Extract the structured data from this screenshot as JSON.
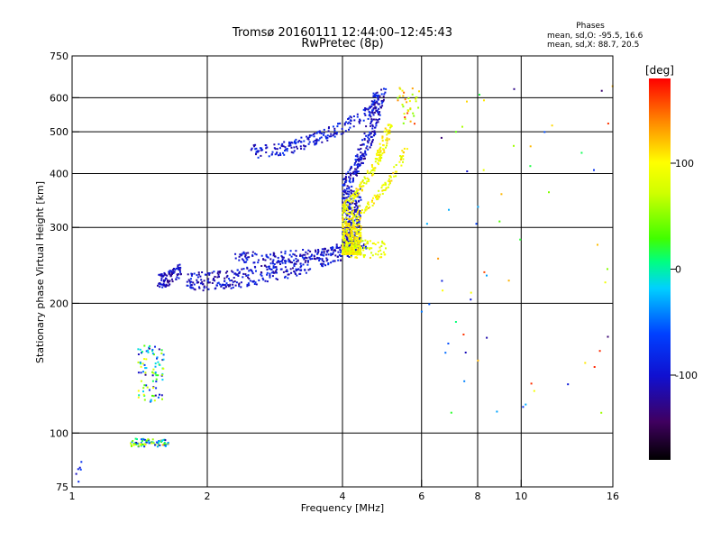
{
  "chart_data": {
    "type": "scatter",
    "title": "Tromsø 20160111 12:44:00–12:45:43",
    "subtitle": "RwPretec (8p)",
    "xlabel": "Frequency [MHz]",
    "ylabel": "Stationary phase Virtual Height [km]",
    "x_scale": "log",
    "y_scale": "log",
    "xlim": [
      1,
      16
    ],
    "ylim": [
      75,
      750
    ],
    "x_ticks": [
      1,
      2,
      4,
      6,
      8,
      10,
      16
    ],
    "x_tick_labels": [
      "1",
      "2",
      "4",
      "6",
      "8",
      "10",
      "16"
    ],
    "y_ticks": [
      75,
      100,
      200,
      300,
      400,
      500,
      600,
      750
    ],
    "y_tick_labels": [
      "75",
      "100",
      "200",
      "300",
      "400",
      "500",
      "600",
      "750"
    ],
    "grid": true,
    "stats": {
      "heading": "Phases",
      "line_o": "mean, sd,O: -95.5, 16.6",
      "line_x": "mean, sd,X:  88.7, 20.5"
    },
    "colorbar": {
      "label": "[deg]",
      "range": [
        -180,
        180
      ],
      "ticks": [
        100,
        0,
        -100
      ],
      "tick_labels": [
        "100",
        "0",
        "-100"
      ]
    },
    "series": [
      {
        "segments": [
          {
            "kind": "cluster",
            "x": [
              1.0,
              1.05
            ],
            "y": [
              77,
              88
            ],
            "phase": [
              -110,
              -60
            ],
            "n": 6
          },
          {
            "kind": "cluster",
            "x": [
              1.35,
              1.65
            ],
            "y": [
              93,
              97
            ],
            "phase": [
              -115,
              140
            ],
            "n": 80
          },
          {
            "kind": "cluster",
            "x": [
              1.4,
              1.6
            ],
            "y": [
              118,
              160
            ],
            "phase": [
              -130,
              110
            ],
            "n": 90
          },
          {
            "kind": "curve",
            "x": [
              1.55,
              1.75
            ],
            "y": [
              225,
              240
            ],
            "spread": 0.04,
            "phase": [
              -130,
              -80
            ],
            "n": 90
          },
          {
            "kind": "curve",
            "x": [
              1.8,
              4.2
            ],
            "y": [
              225,
              270
            ],
            "spread": 0.05,
            "phase": [
              -130,
              -70
            ],
            "n": 350
          },
          {
            "kind": "curve",
            "x": [
              2.3,
              4.6
            ],
            "y": [
              255,
              270
            ],
            "spread": 0.03,
            "phase": [
              -125,
              -75
            ],
            "n": 150
          },
          {
            "kind": "curve",
            "x": [
              2.5,
              4.8
            ],
            "y": [
              450,
              580
            ],
            "spread": 0.035,
            "phase": [
              -120,
              -70
            ],
            "n": 200
          },
          {
            "kind": "steep",
            "x_end": 5.25,
            "y": [
              260,
              630
            ],
            "spread": 0.03,
            "phase": [
              -130,
              -70
            ],
            "n": 700
          },
          {
            "kind": "steep",
            "x_end": 5.75,
            "y": [
              260,
              520
            ],
            "spread": 0.02,
            "phase": [
              70,
              120
            ],
            "n": 420
          },
          {
            "kind": "steep",
            "x_end": 6.5,
            "y": [
              260,
              460
            ],
            "spread": 0.02,
            "phase": [
              70,
              125
            ],
            "n": 220
          },
          {
            "kind": "cluster",
            "x": [
              4.0,
              5.0
            ],
            "y": [
              255,
              280
            ],
            "phase": [
              60,
              110
            ],
            "n": 80
          },
          {
            "kind": "cluster",
            "x": [
              5.3,
              6.0
            ],
            "y": [
              520,
              640
            ],
            "phase": [
              40,
              170
            ],
            "n": 35
          },
          {
            "kind": "cluster",
            "x": [
              6.0,
              16.0
            ],
            "y": [
              110,
              650
            ],
            "phase": [
              -140,
              180
            ],
            "n": 60
          }
        ]
      }
    ]
  }
}
